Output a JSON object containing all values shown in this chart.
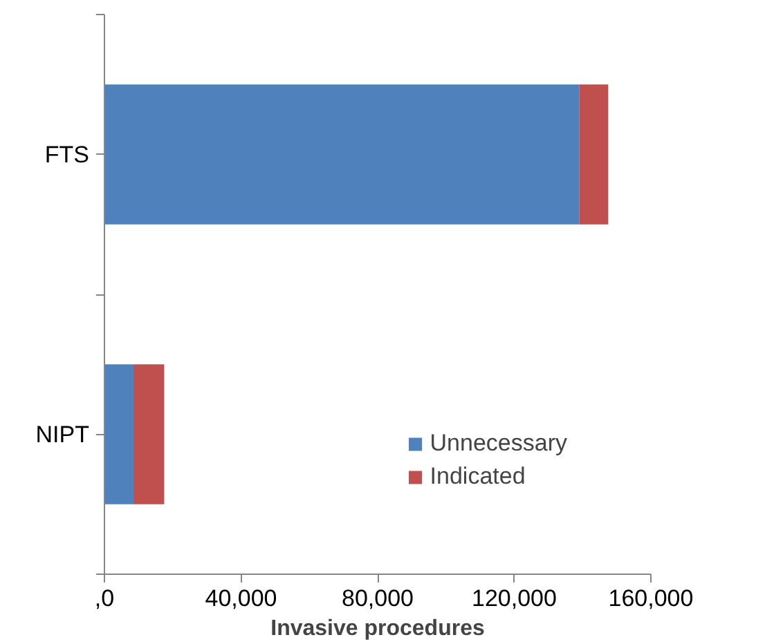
{
  "chart_data": {
    "type": "bar",
    "orientation": "horizontal",
    "stacked": true,
    "xlabel": "Invasive procedures",
    "categories": [
      "FTS",
      "NIPT"
    ],
    "series": [
      {
        "name": "Unnecessary",
        "color": "#4f81bd",
        "values": [
          139000,
          8500
        ]
      },
      {
        "name": "Indicated",
        "color": "#c0504d",
        "values": [
          8500,
          9000
        ]
      }
    ],
    "xlim": [
      0,
      160000
    ],
    "xticks": [
      {
        "value": 0,
        "label": ",0"
      },
      {
        "value": 40000,
        "label": "40,000"
      },
      {
        "value": 80000,
        "label": "80,000"
      },
      {
        "value": 120000,
        "label": "120,000"
      },
      {
        "value": 160000,
        "label": "160,000"
      }
    ],
    "grid": false,
    "legend": "bottom right"
  }
}
